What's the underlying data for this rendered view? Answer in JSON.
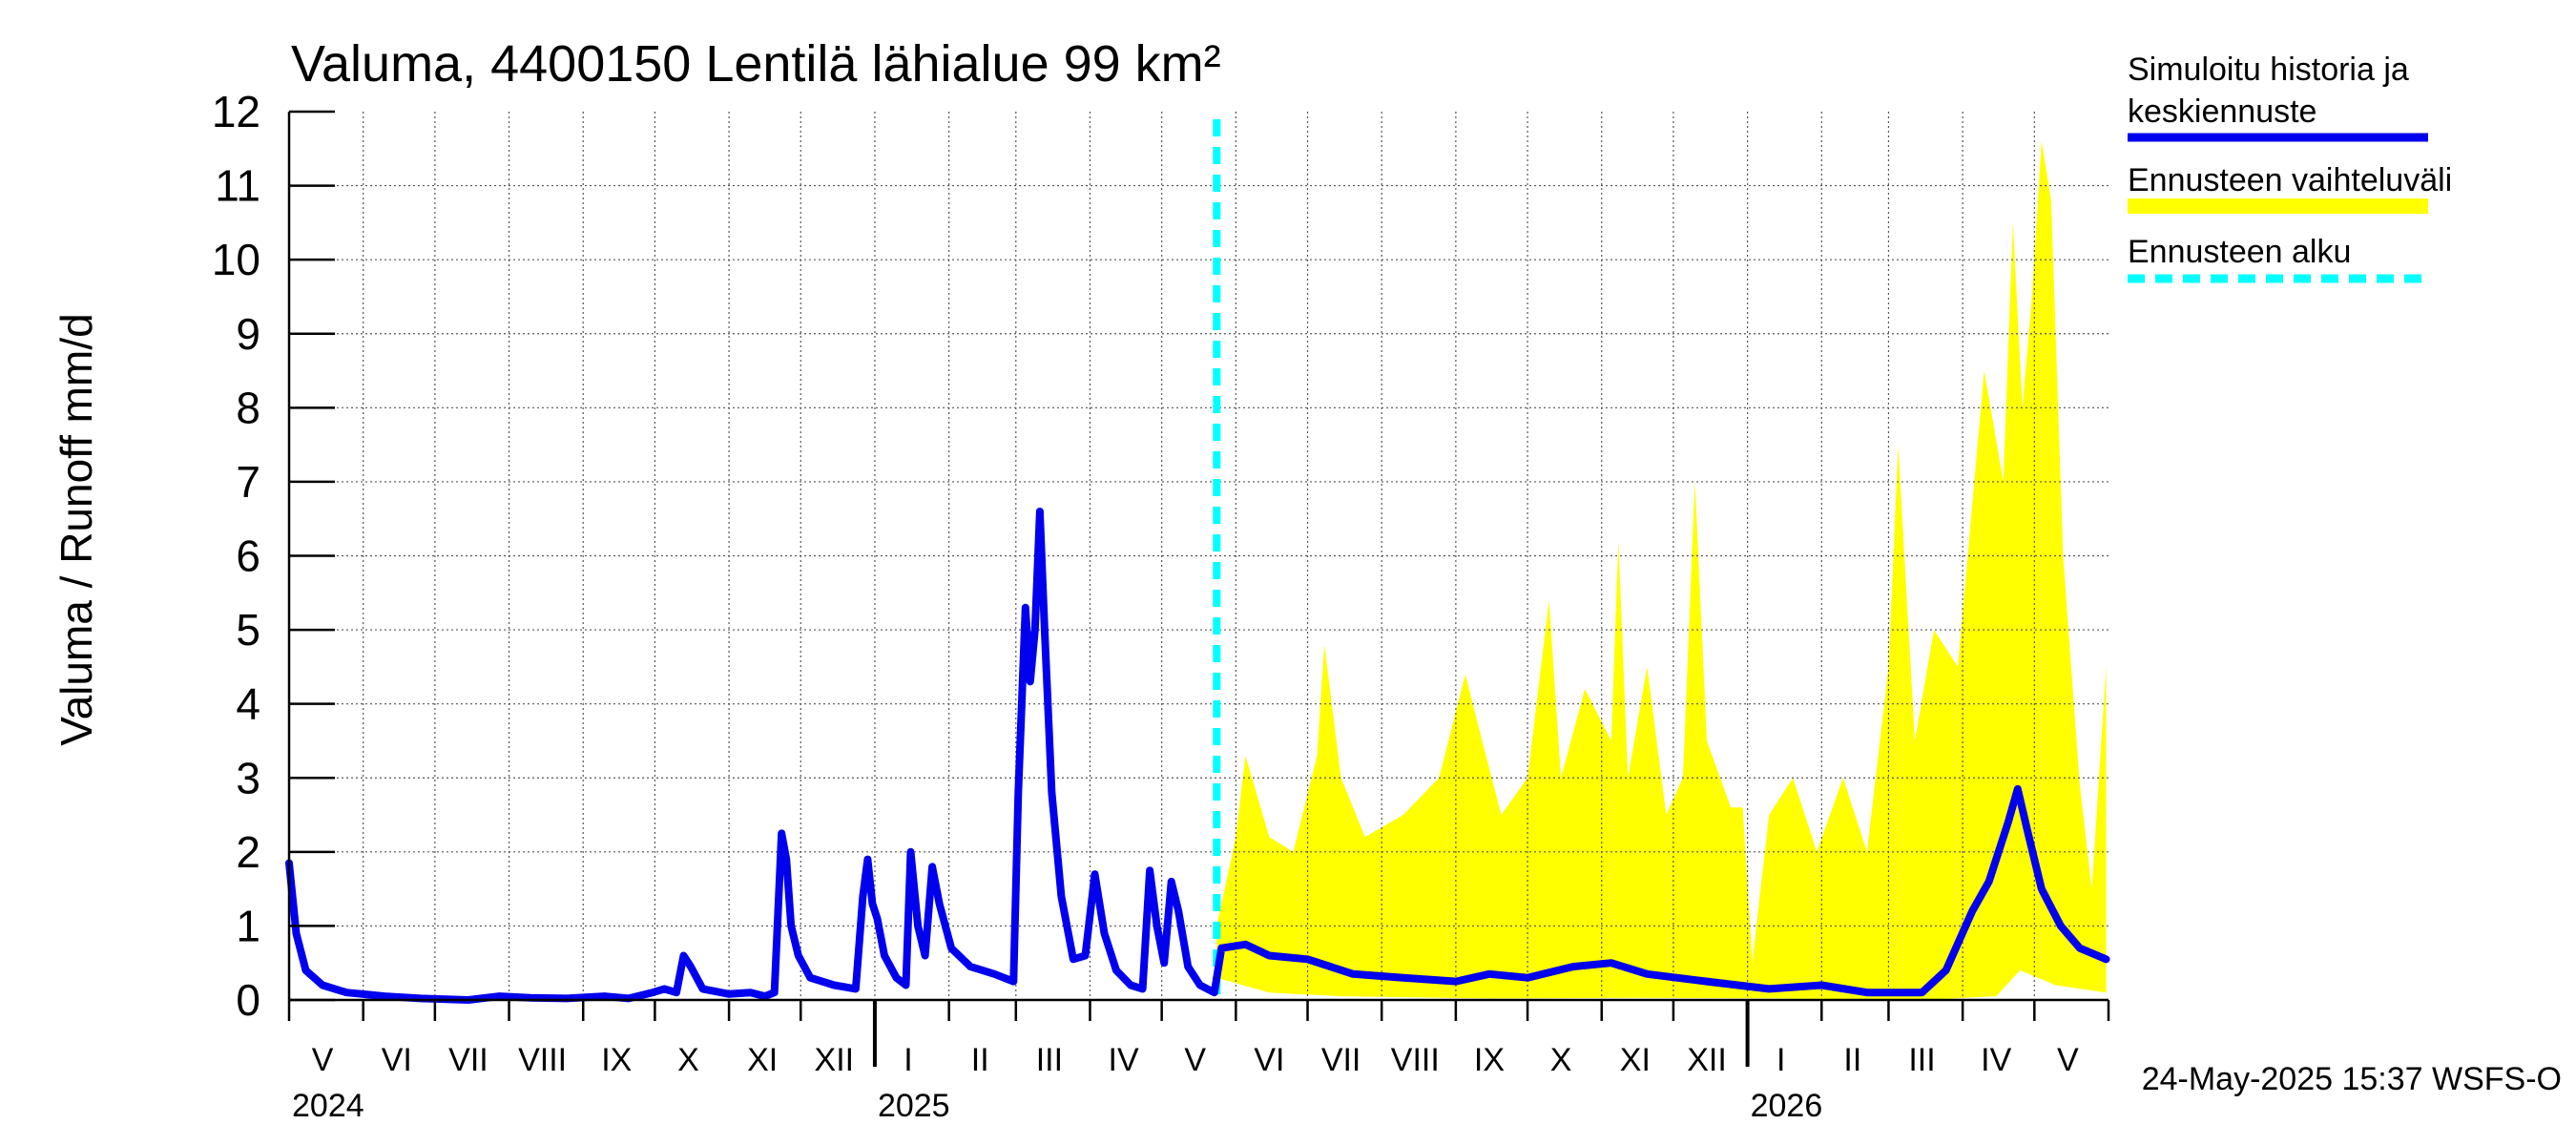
{
  "chart_data": {
    "type": "line",
    "title": "Valuma, 4400150 Lentilä lähialue 99 km²",
    "ylabel": "Valuma / Runoff    mm/d",
    "ylim": [
      0,
      12
    ],
    "yticks": [
      "0",
      "1",
      "2",
      "3",
      "4",
      "5",
      "6",
      "7",
      "8",
      "9",
      "10",
      "11",
      "12"
    ],
    "grid": true,
    "legend_position": "right",
    "x_range": [
      "2024-05-01",
      "2026-05-31"
    ],
    "forecast_start": "2025-05-24",
    "month_labels": [
      {
        "label": "V",
        "date": "2024-05-15"
      },
      {
        "label": "VI",
        "date": "2024-06-15"
      },
      {
        "label": "VII",
        "date": "2024-07-15"
      },
      {
        "label": "VIII",
        "date": "2024-08-15"
      },
      {
        "label": "IX",
        "date": "2024-09-15"
      },
      {
        "label": "X",
        "date": "2024-10-15"
      },
      {
        "label": "XI",
        "date": "2024-11-15"
      },
      {
        "label": "XII",
        "date": "2024-12-15"
      },
      {
        "label": "I",
        "date": "2025-01-15"
      },
      {
        "label": "II",
        "date": "2025-02-14"
      },
      {
        "label": "III",
        "date": "2025-03-15"
      },
      {
        "label": "IV",
        "date": "2025-04-15"
      },
      {
        "label": "V",
        "date": "2025-05-15"
      },
      {
        "label": "VI",
        "date": "2025-06-15"
      },
      {
        "label": "VII",
        "date": "2025-07-15"
      },
      {
        "label": "VIII",
        "date": "2025-08-15"
      },
      {
        "label": "IX",
        "date": "2025-09-15"
      },
      {
        "label": "X",
        "date": "2025-10-15"
      },
      {
        "label": "XI",
        "date": "2025-11-15"
      },
      {
        "label": "XII",
        "date": "2025-12-15"
      },
      {
        "label": "I",
        "date": "2026-01-15"
      },
      {
        "label": "II",
        "date": "2026-02-14"
      },
      {
        "label": "III",
        "date": "2026-03-15"
      },
      {
        "label": "IV",
        "date": "2026-04-15"
      },
      {
        "label": "V",
        "date": "2026-05-15"
      }
    ],
    "year_labels": [
      {
        "label": "2024",
        "date": "2024-05-01"
      },
      {
        "label": "2025",
        "date": "2025-01-01"
      },
      {
        "label": "2026",
        "date": "2026-01-01"
      }
    ],
    "series": [
      {
        "name": "Simuloitu historia ja keskiennuste",
        "color": "#0000ee",
        "points": [
          [
            "2024-05-01",
            1.85
          ],
          [
            "2024-05-04",
            0.9
          ],
          [
            "2024-05-08",
            0.4
          ],
          [
            "2024-05-15",
            0.2
          ],
          [
            "2024-05-25",
            0.1
          ],
          [
            "2024-06-10",
            0.05
          ],
          [
            "2024-06-25",
            0.02
          ],
          [
            "2024-07-15",
            0.0
          ],
          [
            "2024-07-28",
            0.05
          ],
          [
            "2024-08-10",
            0.03
          ],
          [
            "2024-08-25",
            0.02
          ],
          [
            "2024-09-10",
            0.05
          ],
          [
            "2024-09-20",
            0.02
          ],
          [
            "2024-09-30",
            0.1
          ],
          [
            "2024-10-05",
            0.15
          ],
          [
            "2024-10-10",
            0.1
          ],
          [
            "2024-10-13",
            0.6
          ],
          [
            "2024-10-16",
            0.45
          ],
          [
            "2024-10-21",
            0.15
          ],
          [
            "2024-11-01",
            0.08
          ],
          [
            "2024-11-10",
            0.1
          ],
          [
            "2024-11-16",
            0.05
          ],
          [
            "2024-11-20",
            0.1
          ],
          [
            "2024-11-23",
            2.25
          ],
          [
            "2024-11-25",
            1.9
          ],
          [
            "2024-11-27",
            1.0
          ],
          [
            "2024-11-30",
            0.6
          ],
          [
            "2024-12-05",
            0.3
          ],
          [
            "2024-12-15",
            0.2
          ],
          [
            "2024-12-24",
            0.15
          ],
          [
            "2024-12-27",
            1.4
          ],
          [
            "2024-12-29",
            1.9
          ],
          [
            "2024-12-31",
            1.3
          ],
          [
            "2025-01-02",
            1.1
          ],
          [
            "2025-01-05",
            0.6
          ],
          [
            "2025-01-10",
            0.3
          ],
          [
            "2025-01-14",
            0.2
          ],
          [
            "2025-01-16",
            2.0
          ],
          [
            "2025-01-19",
            1.0
          ],
          [
            "2025-01-22",
            0.6
          ],
          [
            "2025-01-25",
            1.8
          ],
          [
            "2025-01-28",
            1.3
          ],
          [
            "2025-02-02",
            0.7
          ],
          [
            "2025-02-10",
            0.45
          ],
          [
            "2025-02-20",
            0.35
          ],
          [
            "2025-02-28",
            0.25
          ],
          [
            "2025-03-02",
            2.8
          ],
          [
            "2025-03-05",
            5.3
          ],
          [
            "2025-03-07",
            4.3
          ],
          [
            "2025-03-09",
            5.0
          ],
          [
            "2025-03-11",
            6.6
          ],
          [
            "2025-03-13",
            5.0
          ],
          [
            "2025-03-16",
            2.8
          ],
          [
            "2025-03-20",
            1.4
          ],
          [
            "2025-03-25",
            0.55
          ],
          [
            "2025-03-30",
            0.6
          ],
          [
            "2025-04-03",
            1.7
          ],
          [
            "2025-04-07",
            0.9
          ],
          [
            "2025-04-12",
            0.4
          ],
          [
            "2025-04-18",
            0.2
          ],
          [
            "2025-04-23",
            0.15
          ],
          [
            "2025-04-26",
            1.75
          ],
          [
            "2025-04-29",
            1.0
          ],
          [
            "2025-05-02",
            0.5
          ],
          [
            "2025-05-05",
            1.6
          ],
          [
            "2025-05-08",
            1.2
          ],
          [
            "2025-05-12",
            0.45
          ],
          [
            "2025-05-17",
            0.2
          ],
          [
            "2025-05-23",
            0.1
          ],
          [
            "2025-05-26",
            0.7
          ],
          [
            "2025-06-05",
            0.75
          ],
          [
            "2025-06-15",
            0.6
          ],
          [
            "2025-07-01",
            0.55
          ],
          [
            "2025-07-20",
            0.35
          ],
          [
            "2025-08-10",
            0.3
          ],
          [
            "2025-09-01",
            0.25
          ],
          [
            "2025-09-15",
            0.35
          ],
          [
            "2025-10-01",
            0.3
          ],
          [
            "2025-10-20",
            0.45
          ],
          [
            "2025-11-05",
            0.5
          ],
          [
            "2025-11-20",
            0.35
          ],
          [
            "2025-12-15",
            0.25
          ],
          [
            "2026-01-10",
            0.15
          ],
          [
            "2026-02-01",
            0.2
          ],
          [
            "2026-02-20",
            0.1
          ],
          [
            "2026-03-15",
            0.1
          ],
          [
            "2026-03-25",
            0.4
          ],
          [
            "2026-04-05",
            1.2
          ],
          [
            "2026-04-12",
            1.6
          ],
          [
            "2026-04-20",
            2.4
          ],
          [
            "2026-04-24",
            2.85
          ],
          [
            "2026-04-28",
            2.3
          ],
          [
            "2026-05-04",
            1.5
          ],
          [
            "2026-05-12",
            1.0
          ],
          [
            "2026-05-20",
            0.7
          ],
          [
            "2026-05-31",
            0.55
          ]
        ]
      },
      {
        "name": "Ennusteen vaihteluväli",
        "color": "#ffff00",
        "points_upper": [
          [
            "2025-05-24",
            1.0
          ],
          [
            "2025-06-01",
            2.2
          ],
          [
            "2025-06-05",
            3.3
          ],
          [
            "2025-06-15",
            2.2
          ],
          [
            "2025-06-25",
            2.0
          ],
          [
            "2025-07-05",
            3.3
          ],
          [
            "2025-07-08",
            4.8
          ],
          [
            "2025-07-15",
            3.0
          ],
          [
            "2025-07-25",
            2.2
          ],
          [
            "2025-08-10",
            2.5
          ],
          [
            "2025-08-25",
            3.0
          ],
          [
            "2025-09-05",
            4.4
          ],
          [
            "2025-09-12",
            3.5
          ],
          [
            "2025-09-20",
            2.5
          ],
          [
            "2025-10-01",
            3.0
          ],
          [
            "2025-10-10",
            5.4
          ],
          [
            "2025-10-15",
            3.0
          ],
          [
            "2025-10-25",
            4.2
          ],
          [
            "2025-11-05",
            3.5
          ],
          [
            "2025-11-08",
            6.2
          ],
          [
            "2025-11-12",
            3.0
          ],
          [
            "2025-11-20",
            4.5
          ],
          [
            "2025-11-28",
            2.5
          ],
          [
            "2025-12-05",
            3.0
          ],
          [
            "2025-12-10",
            7.0
          ],
          [
            "2025-12-15",
            3.5
          ],
          [
            "2025-12-25",
            2.6
          ],
          [
            "2025-12-30",
            2.6
          ],
          [
            "2026-01-03",
            0.5
          ],
          [
            "2026-01-10",
            2.5
          ],
          [
            "2026-01-20",
            3.0
          ],
          [
            "2026-01-30",
            2.0
          ],
          [
            "2026-02-10",
            3.0
          ],
          [
            "2026-02-20",
            2.0
          ],
          [
            "2026-03-01",
            4.5
          ],
          [
            "2026-03-05",
            7.5
          ],
          [
            "2026-03-12",
            3.5
          ],
          [
            "2026-03-20",
            5.0
          ],
          [
            "2026-03-30",
            4.5
          ],
          [
            "2026-04-10",
            8.5
          ],
          [
            "2026-04-18",
            7.0
          ],
          [
            "2026-04-22",
            10.5
          ],
          [
            "2026-04-26",
            8.0
          ],
          [
            "2026-04-30",
            9.5
          ],
          [
            "2026-05-04",
            11.6
          ],
          [
            "2026-05-08",
            10.8
          ],
          [
            "2026-05-13",
            6.0
          ],
          [
            "2026-05-20",
            2.9
          ],
          [
            "2026-05-25",
            1.5
          ],
          [
            "2026-05-31",
            4.5
          ]
        ],
        "points_lower": [
          [
            "2025-05-24",
            0.3
          ],
          [
            "2025-06-15",
            0.1
          ],
          [
            "2025-07-15",
            0.05
          ],
          [
            "2025-09-15",
            0.02
          ],
          [
            "2025-11-15",
            0.03
          ],
          [
            "2026-01-15",
            0.02
          ],
          [
            "2026-03-15",
            0.0
          ],
          [
            "2026-04-15",
            0.05
          ],
          [
            "2026-04-25",
            0.4
          ],
          [
            "2026-05-10",
            0.2
          ],
          [
            "2026-05-31",
            0.1
          ]
        ]
      },
      {
        "name": "Ennusteen alku",
        "color": "#00ffff"
      }
    ]
  },
  "legend": {
    "items": [
      {
        "line1": "Simuloitu historia ja",
        "line2": "keskiennuste",
        "color": "#0000ee",
        "style": "solid"
      },
      {
        "line1": "Ennusteen vaihteluväli",
        "line2": "",
        "color": "#ffff00",
        "style": "solid"
      },
      {
        "line1": "Ennusteen alku",
        "line2": "",
        "color": "#00ffff",
        "style": "dashed"
      }
    ]
  },
  "footer": {
    "timestamp": "24-May-2025 15:37 WSFS-O"
  }
}
